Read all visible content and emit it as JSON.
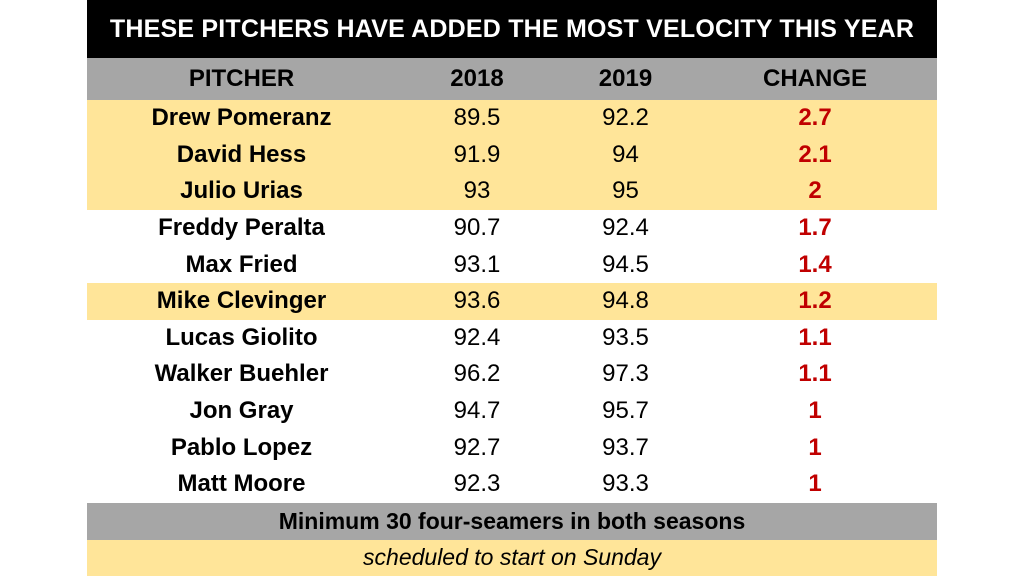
{
  "chart_data": {
    "type": "table",
    "title": "THESE PITCHERS HAVE ADDED THE MOST VELOCITY THIS YEAR",
    "columns": [
      "PITCHER",
      "2018",
      "2019",
      "CHANGE"
    ],
    "rows": [
      {
        "pitcher": "Drew Pomeranz",
        "y2018": "89.5",
        "y2019": "92.2",
        "change": "2.7",
        "highlight": true
      },
      {
        "pitcher": "David Hess",
        "y2018": "91.9",
        "y2019": "94",
        "change": "2.1",
        "highlight": true
      },
      {
        "pitcher": "Julio Urias",
        "y2018": "93",
        "y2019": "95",
        "change": "2",
        "highlight": true
      },
      {
        "pitcher": "Freddy Peralta",
        "y2018": "90.7",
        "y2019": "92.4",
        "change": "1.7",
        "highlight": false
      },
      {
        "pitcher": "Max Fried",
        "y2018": "93.1",
        "y2019": "94.5",
        "change": "1.4",
        "highlight": false
      },
      {
        "pitcher": "Mike Clevinger",
        "y2018": "93.6",
        "y2019": "94.8",
        "change": "1.2",
        "highlight": true
      },
      {
        "pitcher": "Lucas Giolito",
        "y2018": "92.4",
        "y2019": "93.5",
        "change": "1.1",
        "highlight": false
      },
      {
        "pitcher": "Walker Buehler",
        "y2018": "96.2",
        "y2019": "97.3",
        "change": "1.1",
        "highlight": false
      },
      {
        "pitcher": "Jon Gray",
        "y2018": "94.7",
        "y2019": "95.7",
        "change": "1",
        "highlight": false
      },
      {
        "pitcher": "Pablo Lopez",
        "y2018": "92.7",
        "y2019": "93.7",
        "change": "1",
        "highlight": false
      },
      {
        "pitcher": "Matt Moore",
        "y2018": "92.3",
        "y2019": "93.3",
        "change": "1",
        "highlight": false
      }
    ],
    "footnote": "Minimum 30 four-seamers in both seasons",
    "subnote": "scheduled to start on Sunday",
    "colors": {
      "title_bg": "#000000",
      "header_bg": "#a6a6a6",
      "highlight_bg": "#ffe599",
      "change_text": "#c00000"
    }
  }
}
